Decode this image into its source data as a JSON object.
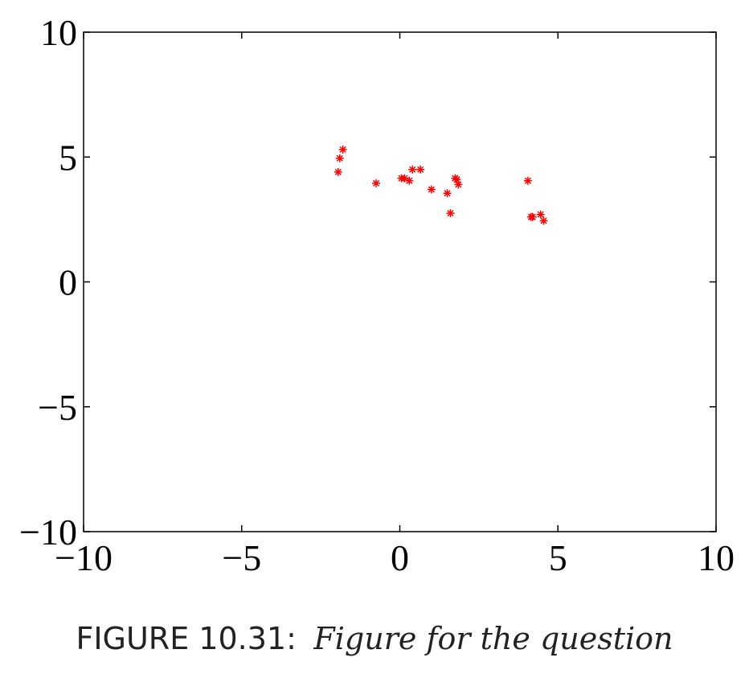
{
  "chart_data": {
    "type": "scatter",
    "xlim": [
      -10,
      10
    ],
    "ylim": [
      -10,
      10
    ],
    "x_ticks": [
      -10,
      -5,
      0,
      5,
      10
    ],
    "y_ticks": [
      -10,
      -5,
      0,
      5,
      10
    ],
    "x_tick_labels": [
      "−10",
      "−5",
      "0",
      "5",
      "10"
    ],
    "y_tick_labels": [
      "−10",
      "−5",
      "0",
      "5",
      "10"
    ],
    "grid": false,
    "marker": "asterisk",
    "marker_color": "#ff0000",
    "series": [
      {
        "x": [
          -1.95,
          -1.9,
          -1.8,
          -0.75,
          0.05,
          0.15,
          0.3,
          0.4,
          0.65,
          1.0,
          1.5,
          1.6,
          1.75,
          1.8,
          1.85,
          4.05,
          4.15,
          4.2,
          4.45,
          4.55
        ],
        "y": [
          4.4,
          4.95,
          5.3,
          3.95,
          4.15,
          4.15,
          4.05,
          4.5,
          4.5,
          3.7,
          3.55,
          2.75,
          4.15,
          4.1,
          3.9,
          4.05,
          2.6,
          2.6,
          2.7,
          2.45
        ]
      }
    ]
  },
  "caption": {
    "label": "FIGURE 10.31:",
    "text": "Figure for the question"
  }
}
